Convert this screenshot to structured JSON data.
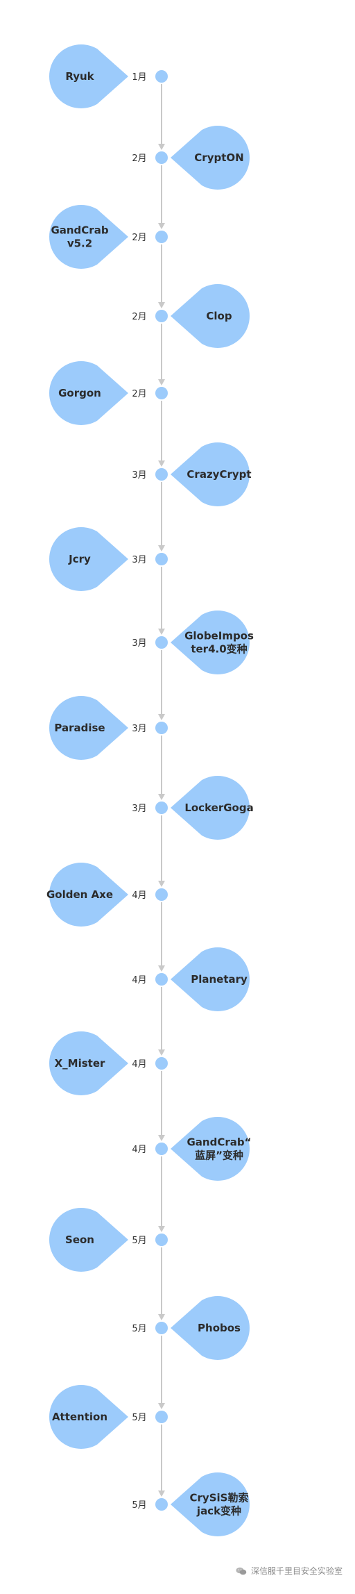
{
  "colors": {
    "node_fill": "#9ccbfb",
    "dot_fill": "#9ccbfb",
    "arrow_line": "#c9c9c9",
    "label_text": "#2b2b2b"
  },
  "events": [
    {
      "month": "1月",
      "name": [
        "Ryuk"
      ],
      "side": "left"
    },
    {
      "month": "2月",
      "name": [
        "CryptON"
      ],
      "side": "right"
    },
    {
      "month": "2月",
      "name": [
        "GandCrab",
        "v5.2"
      ],
      "side": "left"
    },
    {
      "month": "2月",
      "name": [
        "Clop"
      ],
      "side": "right"
    },
    {
      "month": "2月",
      "name": [
        "Gorgon"
      ],
      "side": "left"
    },
    {
      "month": "3月",
      "name": [
        "CrazyCrypt"
      ],
      "side": "right"
    },
    {
      "month": "3月",
      "name": [
        "Jcry"
      ],
      "side": "left"
    },
    {
      "month": "3月",
      "name": [
        "GlobeImpos",
        "ter4.0变种"
      ],
      "side": "right"
    },
    {
      "month": "3月",
      "name": [
        "Paradise"
      ],
      "side": "left"
    },
    {
      "month": "3月",
      "name": [
        "LockerGoga"
      ],
      "side": "right"
    },
    {
      "month": "4月",
      "name": [
        "Golden Axe"
      ],
      "side": "left"
    },
    {
      "month": "4月",
      "name": [
        "Planetary"
      ],
      "side": "right"
    },
    {
      "month": "4月",
      "name": [
        "X_Mister"
      ],
      "side": "left"
    },
    {
      "month": "4月",
      "name": [
        "GandCrab“",
        "蓝屏”变种"
      ],
      "side": "right"
    },
    {
      "month": "5月",
      "name": [
        "Seon"
      ],
      "side": "left"
    },
    {
      "month": "5月",
      "name": [
        "Phobos"
      ],
      "side": "right"
    },
    {
      "month": "5月",
      "name": [
        "Attention"
      ],
      "side": "left"
    },
    {
      "month": "5月",
      "name": [
        "CrySiS勒索",
        "jack变种"
      ],
      "side": "right"
    }
  ],
  "watermark": {
    "text": "深信服千里目安全实验室",
    "icon": "wechat-icon"
  }
}
